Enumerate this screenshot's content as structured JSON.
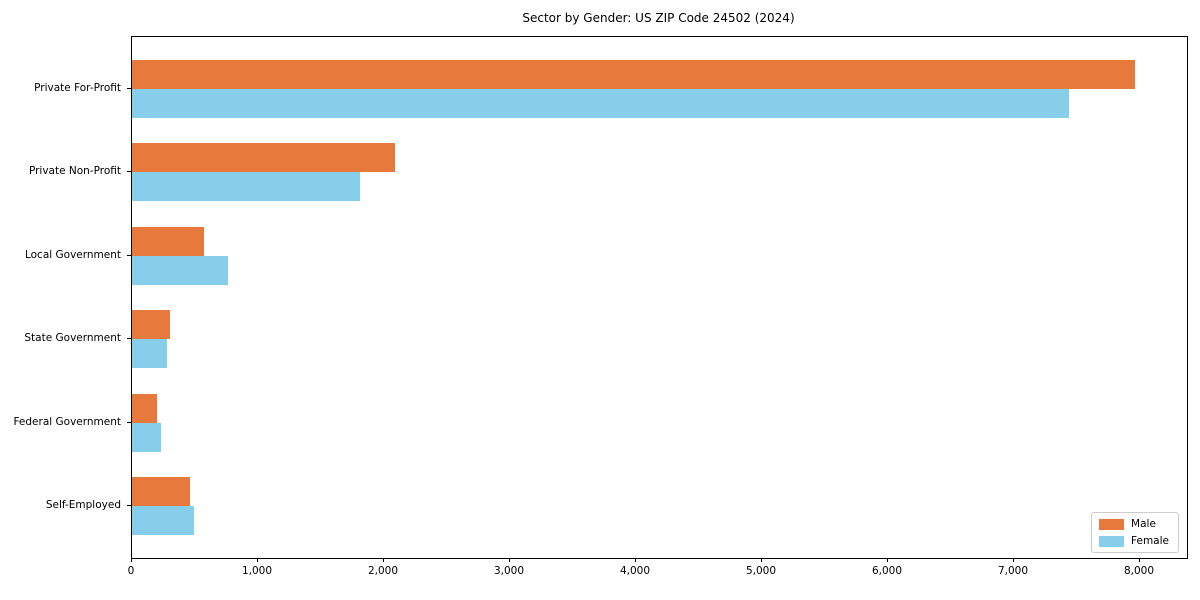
{
  "chart_data": {
    "type": "bar",
    "orientation": "horizontal",
    "title": "Sector by Gender: US ZIP Code 24502 (2024)",
    "xlabel": "",
    "ylabel": "",
    "categories": [
      "Private For-Profit",
      "Private Non-Profit",
      "Local Government",
      "State Government",
      "Federal Government",
      "Self-Employed"
    ],
    "series": [
      {
        "name": "Male",
        "color": "#e8793d",
        "values": [
          7960,
          2090,
          570,
          300,
          200,
          460
        ]
      },
      {
        "name": "Female",
        "color": "#87ceeb",
        "values": [
          7430,
          1810,
          760,
          280,
          230,
          490
        ]
      }
    ],
    "xlim": [
      0,
      8370
    ],
    "xticks": [
      0,
      1000,
      2000,
      3000,
      4000,
      5000,
      6000,
      7000,
      8000
    ],
    "xtick_labels": [
      "0",
      "1,000",
      "2,000",
      "3,000",
      "4,000",
      "5,000",
      "6,000",
      "7,000",
      "8,000"
    ],
    "legend_position": "lower right",
    "grid": false
  }
}
